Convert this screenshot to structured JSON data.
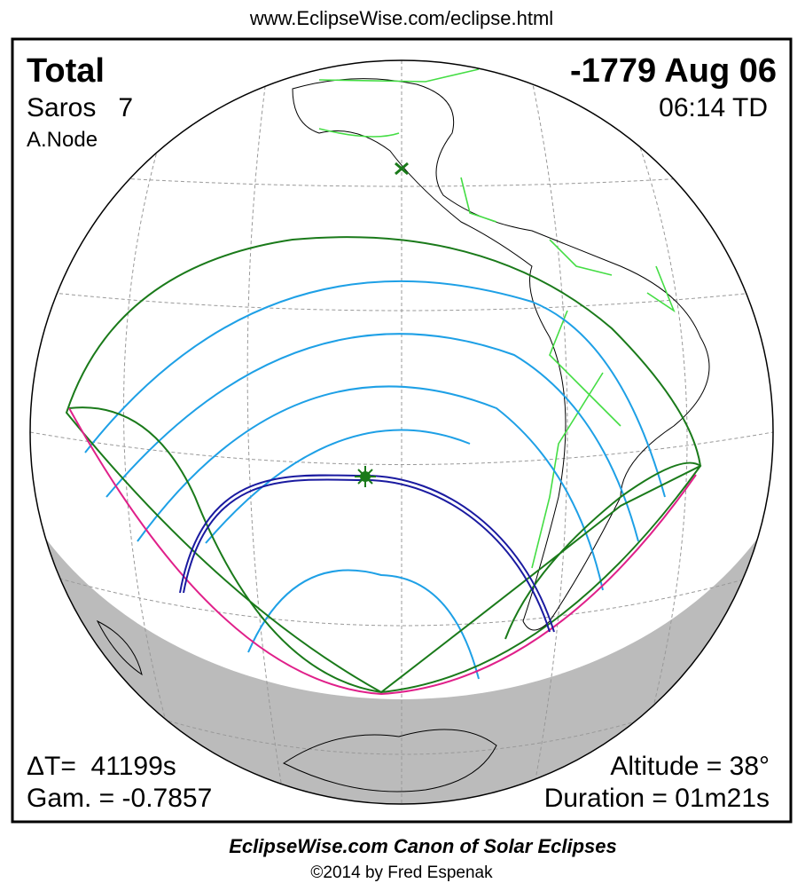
{
  "header": {
    "url": "www.EclipseWise.com/eclipse.html"
  },
  "eclipse": {
    "type": "Total",
    "date": "-1779 Aug 06",
    "saros": "Saros   7",
    "time": "06:14 TD",
    "node": "A.Node",
    "delta_t": "ΔT=  41199s",
    "gamma": "Gam. = -0.7857",
    "altitude": "Altitude = 38°",
    "duration": "Duration = 01m21s"
  },
  "footer": {
    "title": "EclipseWise.com Canon of Solar Eclipses",
    "copyright": "©2014 by Fred Espenak"
  }
}
